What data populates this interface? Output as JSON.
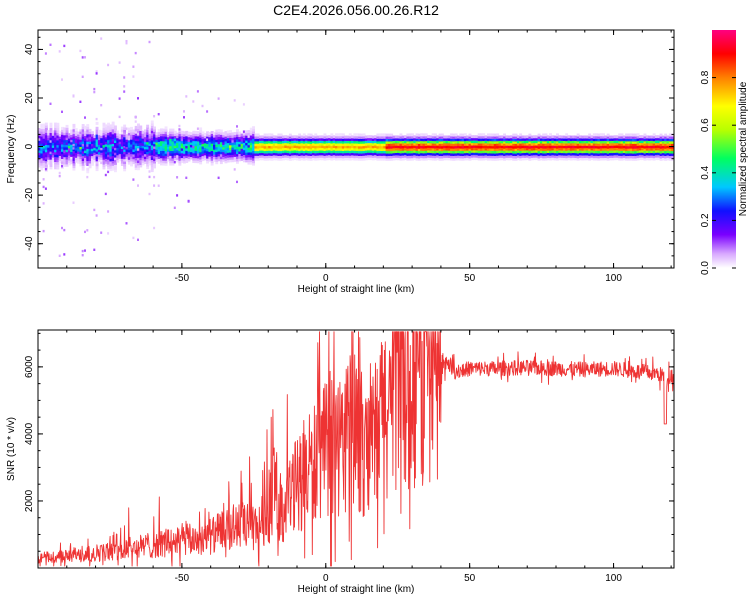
{
  "title": "C2E4.2026.056.00.26.R12",
  "chart_data": [
    {
      "type": "heatmap",
      "title": "C2E4.2026.056.00.26.R12",
      "xlabel": "Height of straight line (km)",
      "ylabel": "Frequency (Hz)",
      "xlim": [
        -100,
        121
      ],
      "ylim": [
        -50,
        48
      ],
      "xticks": [
        -50,
        0,
        50,
        100
      ],
      "yticks": [
        -40,
        -20,
        0,
        20,
        40
      ],
      "colorbar": {
        "label": "Normalized spectral amplitude",
        "range": [
          0,
          1
        ],
        "ticks": [
          0.0,
          0.2,
          0.4,
          0.6,
          0.8
        ],
        "tick_labels": [
          "0.0",
          "0.2",
          "0.4",
          "0.6",
          "0.8"
        ],
        "colormap": [
          "#ffffff",
          "#d8a8ff",
          "#7a00ff",
          "#1010ff",
          "#00c8ff",
          "#00ff60",
          "#b8ff00",
          "#ffff00",
          "#ff8000",
          "#ff0000",
          "#ff0080"
        ]
      },
      "bands": [
        {
          "x": [
            -100,
            -60
          ],
          "half_width_hz": 7,
          "peak": 0.45,
          "noise": "high"
        },
        {
          "x": [
            -60,
            -25
          ],
          "half_width_hz": 5,
          "peak": 0.55,
          "noise": "medium"
        },
        {
          "x": [
            -25,
            20
          ],
          "half_width_hz": 3,
          "peak": 0.8,
          "noise": "low"
        },
        {
          "x": [
            20,
            121
          ],
          "half_width_hz": 3,
          "peak": 0.95,
          "noise": "low"
        }
      ]
    },
    {
      "type": "line",
      "xlabel": "Height of straight line (km)",
      "ylabel": "SNR (10 * v/v)",
      "xlim": [
        -100,
        121
      ],
      "ylim": [
        0,
        7100
      ],
      "xticks": [
        -50,
        0,
        50,
        100
      ],
      "yticks": [
        2000,
        4000,
        6000
      ],
      "series": [
        {
          "name": "SNR",
          "color": "#ee3333",
          "x": [
            -100,
            -90,
            -80,
            -70,
            -60,
            -50,
            -40,
            -35,
            -30,
            -25,
            -20,
            -18,
            -15,
            -10,
            -5,
            0,
            5,
            10,
            15,
            20,
            25,
            30,
            35,
            40,
            42,
            45,
            50,
            60,
            70,
            80,
            90,
            100,
            105,
            110,
            115,
            119,
            121
          ],
          "y": [
            300,
            350,
            450,
            550,
            700,
            800,
            950,
            1100,
            1300,
            1150,
            1600,
            2400,
            1700,
            2500,
            3000,
            3500,
            3700,
            4200,
            3200,
            4700,
            5100,
            5500,
            5800,
            5900,
            6200,
            5850,
            5950,
            5950,
            5980,
            5950,
            5920,
            5950,
            5900,
            5850,
            5800,
            5700,
            5800
          ]
        }
      ]
    }
  ]
}
